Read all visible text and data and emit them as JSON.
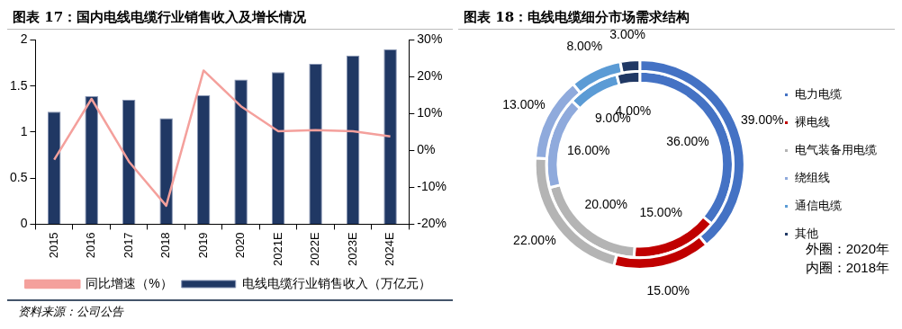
{
  "chart_data": [
    {
      "type": "bar",
      "title": "图表 17：国内电线电缆行业销售收入及增长情况",
      "categories": [
        "2015",
        "2016",
        "2017",
        "2018",
        "2019",
        "2020",
        "2021E",
        "2022E",
        "2023E",
        "2024E"
      ],
      "series": [
        {
          "name": "电线电缆行业销售收入（万亿元）",
          "type": "bar",
          "color": "#203864",
          "values": [
            1.22,
            1.39,
            1.35,
            1.15,
            1.4,
            1.57,
            1.65,
            1.74,
            1.83,
            1.9
          ]
        },
        {
          "name": "同比增速（%）",
          "type": "line",
          "axis": "y2",
          "color": "#f4a09c",
          "values": [
            -2.5,
            14,
            -3,
            -15,
            21.7,
            12,
            5.2,
            5.5,
            5.2,
            3.8
          ]
        }
      ],
      "ylim": [
        0,
        2
      ],
      "yticks": [
        0,
        0.5,
        1,
        1.5,
        2
      ],
      "y2lim": [
        -20,
        30
      ],
      "y2ticks": [
        {
          "value": -20,
          "label": "-20%"
        },
        {
          "value": -10,
          "label": "-10%"
        },
        {
          "value": 0,
          "label": "0%"
        },
        {
          "value": 10,
          "label": "10%"
        },
        {
          "value": 20,
          "label": "20%"
        },
        {
          "value": 30,
          "label": "30%"
        }
      ],
      "grid": false,
      "legend": "bottom",
      "marker": "none",
      "annotations": [
        "资料来源：公司公告"
      ]
    },
    {
      "type": "donut",
      "title": "图表 18：电线电缆细分市场需求结构",
      "categories": [
        "电力电缆",
        "裸电线",
        "电气装备用电缆",
        "绕组线",
        "通信电缆",
        "其他"
      ],
      "colors": [
        "#4472c4",
        "#c00000",
        "#b4b4b4",
        "#8faadc",
        "#5b9bd5",
        "#203864"
      ],
      "series": [
        {
          "values": [
            36,
            15,
            20,
            16,
            9,
            4
          ],
          "value_labels": [
            "36.00%",
            "15.00%",
            "20.00%",
            "16.00%",
            "9.00%",
            "4.00%"
          ]
        },
        {
          "values": [
            39,
            15,
            22,
            13,
            8,
            3
          ],
          "value_labels": [
            "39.00%",
            "15.00%",
            "22.00%",
            "13.00%",
            "8.00%",
            "3.00%"
          ]
        }
      ],
      "legend": "right",
      "annotations": [
        "外圈：2020年",
        "内圈：2018年"
      ]
    }
  ]
}
